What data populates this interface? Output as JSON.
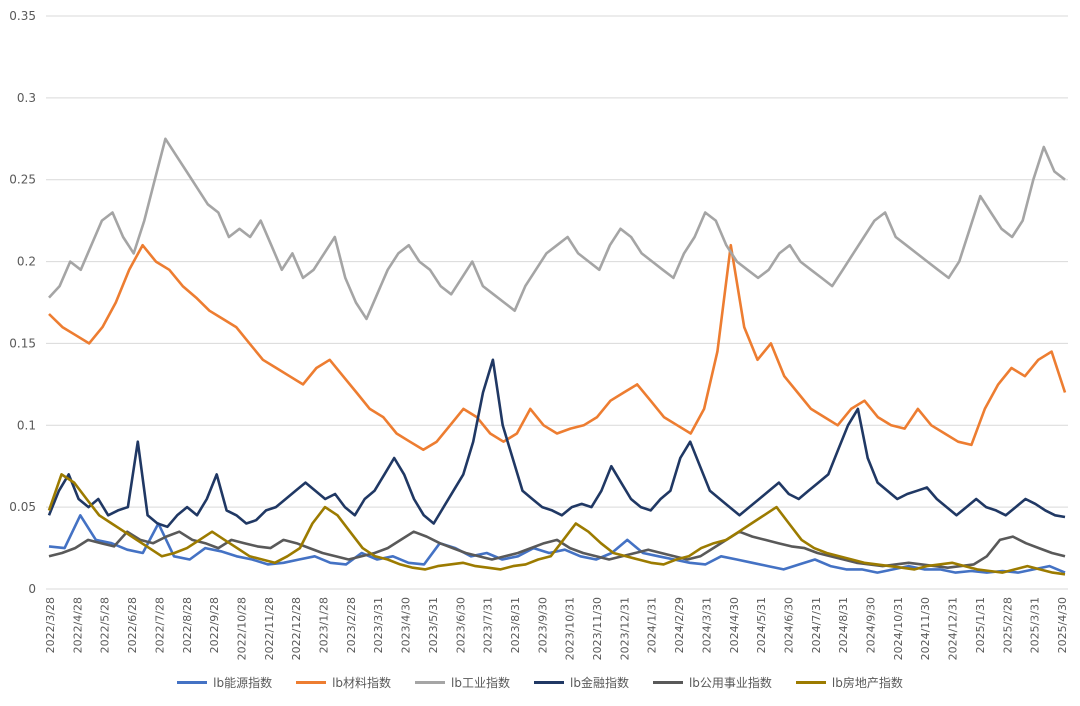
{
  "chart_data": {
    "type": "line",
    "y_ticks": [
      "0",
      "0.05",
      "0.1",
      "0.15",
      "0.2",
      "0.25",
      "0.3",
      "0.35"
    ],
    "ylim": [
      0,
      0.35
    ],
    "grid": true,
    "legend_position": "bottom",
    "x_ticks": [
      "2022/3/28",
      "2022/4/28",
      "2022/5/28",
      "2022/6/28",
      "2022/7/28",
      "2022/8/28",
      "2022/9/28",
      "2022/10/28",
      "2022/11/28",
      "2022/12/28",
      "2023/1/28",
      "2023/2/28",
      "2023/3/31",
      "2023/4/30",
      "2023/5/31",
      "2023/6/30",
      "2023/7/31",
      "2023/8/31",
      "2023/9/30",
      "2023/10/31",
      "2023/11/30",
      "2023/12/31",
      "2024/1/31",
      "2024/2/29",
      "2024/3/31",
      "2024/4/30",
      "2024/5/31",
      "2024/6/30",
      "2024/7/31",
      "2024/8/31",
      "2024/9/30",
      "2024/10/31",
      "2024/11/30",
      "2024/12/31",
      "2025/1/31",
      "2025/2/28",
      "2025/3/31",
      "2025/4/30"
    ],
    "series": [
      {
        "name": "lb能源指数",
        "color": "#4472C4",
        "values": [
          0.026,
          0.025,
          0.045,
          0.03,
          0.028,
          0.024,
          0.022,
          0.04,
          0.02,
          0.018,
          0.025,
          0.023,
          0.02,
          0.018,
          0.015,
          0.016,
          0.018,
          0.02,
          0.016,
          0.015,
          0.022,
          0.018,
          0.02,
          0.016,
          0.015,
          0.028,
          0.025,
          0.02,
          0.022,
          0.018,
          0.02,
          0.025,
          0.022,
          0.024,
          0.02,
          0.018,
          0.022,
          0.03,
          0.022,
          0.02,
          0.018,
          0.016,
          0.015,
          0.02,
          0.018,
          0.016,
          0.014,
          0.012,
          0.015,
          0.018,
          0.014,
          0.012,
          0.012,
          0.01,
          0.012,
          0.014,
          0.012,
          0.012,
          0.01,
          0.011,
          0.01,
          0.011,
          0.01,
          0.012,
          0.014,
          0.01
        ]
      },
      {
        "name": "lb材料指数",
        "color": "#ED7D31",
        "values": [
          0.168,
          0.16,
          0.155,
          0.15,
          0.16,
          0.175,
          0.195,
          0.21,
          0.2,
          0.195,
          0.185,
          0.178,
          0.17,
          0.165,
          0.16,
          0.15,
          0.14,
          0.135,
          0.13,
          0.125,
          0.135,
          0.14,
          0.13,
          0.12,
          0.11,
          0.105,
          0.095,
          0.09,
          0.085,
          0.09,
          0.1,
          0.11,
          0.105,
          0.095,
          0.09,
          0.095,
          0.11,
          0.1,
          0.095,
          0.098,
          0.1,
          0.105,
          0.115,
          0.12,
          0.125,
          0.115,
          0.105,
          0.1,
          0.095,
          0.11,
          0.145,
          0.21,
          0.16,
          0.14,
          0.15,
          0.13,
          0.12,
          0.11,
          0.105,
          0.1,
          0.11,
          0.115,
          0.105,
          0.1,
          0.098,
          0.11,
          0.1,
          0.095,
          0.09,
          0.088,
          0.11,
          0.125,
          0.135,
          0.13,
          0.14,
          0.145,
          0.12
        ]
      },
      {
        "name": "lb工业指数",
        "color": "#A5A5A5",
        "values": [
          0.178,
          0.185,
          0.2,
          0.195,
          0.21,
          0.225,
          0.23,
          0.215,
          0.205,
          0.225,
          0.25,
          0.275,
          0.265,
          0.255,
          0.245,
          0.235,
          0.23,
          0.215,
          0.22,
          0.215,
          0.225,
          0.21,
          0.195,
          0.205,
          0.19,
          0.195,
          0.205,
          0.215,
          0.19,
          0.175,
          0.165,
          0.18,
          0.195,
          0.205,
          0.21,
          0.2,
          0.195,
          0.185,
          0.18,
          0.19,
          0.2,
          0.185,
          0.18,
          0.175,
          0.17,
          0.185,
          0.195,
          0.205,
          0.21,
          0.215,
          0.205,
          0.2,
          0.195,
          0.21,
          0.22,
          0.215,
          0.205,
          0.2,
          0.195,
          0.19,
          0.205,
          0.215,
          0.23,
          0.225,
          0.21,
          0.2,
          0.195,
          0.19,
          0.195,
          0.205,
          0.21,
          0.2,
          0.195,
          0.19,
          0.185,
          0.195,
          0.205,
          0.215,
          0.225,
          0.23,
          0.215,
          0.21,
          0.205,
          0.2,
          0.195,
          0.19,
          0.2,
          0.22,
          0.24,
          0.23,
          0.22,
          0.215,
          0.225,
          0.25,
          0.27,
          0.255,
          0.25
        ]
      },
      {
        "name": "lb金融指数",
        "color": "#203864",
        "values": [
          0.045,
          0.06,
          0.07,
          0.055,
          0.05,
          0.055,
          0.045,
          0.048,
          0.05,
          0.09,
          0.045,
          0.04,
          0.038,
          0.045,
          0.05,
          0.045,
          0.055,
          0.07,
          0.048,
          0.045,
          0.04,
          0.042,
          0.048,
          0.05,
          0.055,
          0.06,
          0.065,
          0.06,
          0.055,
          0.058,
          0.05,
          0.045,
          0.055,
          0.06,
          0.07,
          0.08,
          0.07,
          0.055,
          0.045,
          0.04,
          0.05,
          0.06,
          0.07,
          0.09,
          0.12,
          0.14,
          0.1,
          0.08,
          0.06,
          0.055,
          0.05,
          0.048,
          0.045,
          0.05,
          0.052,
          0.05,
          0.06,
          0.075,
          0.065,
          0.055,
          0.05,
          0.048,
          0.055,
          0.06,
          0.08,
          0.09,
          0.075,
          0.06,
          0.055,
          0.05,
          0.045,
          0.05,
          0.055,
          0.06,
          0.065,
          0.058,
          0.055,
          0.06,
          0.065,
          0.07,
          0.085,
          0.1,
          0.11,
          0.08,
          0.065,
          0.06,
          0.055,
          0.058,
          0.06,
          0.062,
          0.055,
          0.05,
          0.045,
          0.05,
          0.055,
          0.05,
          0.048,
          0.045,
          0.05,
          0.055,
          0.052,
          0.048,
          0.045,
          0.044
        ]
      },
      {
        "name": "lb公用事业指数",
        "color": "#595959",
        "values": [
          0.02,
          0.022,
          0.025,
          0.03,
          0.028,
          0.026,
          0.035,
          0.03,
          0.028,
          0.032,
          0.035,
          0.03,
          0.028,
          0.025,
          0.03,
          0.028,
          0.026,
          0.025,
          0.03,
          0.028,
          0.025,
          0.022,
          0.02,
          0.018,
          0.02,
          0.022,
          0.025,
          0.03,
          0.035,
          0.032,
          0.028,
          0.025,
          0.022,
          0.02,
          0.018,
          0.02,
          0.022,
          0.025,
          0.028,
          0.03,
          0.025,
          0.022,
          0.02,
          0.018,
          0.02,
          0.022,
          0.024,
          0.022,
          0.02,
          0.018,
          0.02,
          0.025,
          0.03,
          0.035,
          0.032,
          0.03,
          0.028,
          0.026,
          0.025,
          0.022,
          0.02,
          0.018,
          0.016,
          0.015,
          0.014,
          0.015,
          0.016,
          0.015,
          0.014,
          0.013,
          0.014,
          0.015,
          0.02,
          0.03,
          0.032,
          0.028,
          0.025,
          0.022,
          0.02
        ]
      },
      {
        "name": "lb房地产指数",
        "color": "#9C7B00",
        "values": [
          0.048,
          0.07,
          0.065,
          0.055,
          0.045,
          0.04,
          0.035,
          0.03,
          0.025,
          0.02,
          0.022,
          0.025,
          0.03,
          0.035,
          0.03,
          0.025,
          0.02,
          0.018,
          0.016,
          0.02,
          0.025,
          0.04,
          0.05,
          0.045,
          0.035,
          0.025,
          0.02,
          0.018,
          0.015,
          0.013,
          0.012,
          0.014,
          0.015,
          0.016,
          0.014,
          0.013,
          0.012,
          0.014,
          0.015,
          0.018,
          0.02,
          0.03,
          0.04,
          0.035,
          0.028,
          0.022,
          0.02,
          0.018,
          0.016,
          0.015,
          0.018,
          0.02,
          0.025,
          0.028,
          0.03,
          0.035,
          0.04,
          0.045,
          0.05,
          0.04,
          0.03,
          0.025,
          0.022,
          0.02,
          0.018,
          0.016,
          0.015,
          0.014,
          0.013,
          0.012,
          0.014,
          0.015,
          0.016,
          0.014,
          0.012,
          0.011,
          0.01,
          0.012,
          0.014,
          0.012,
          0.01,
          0.009
        ]
      }
    ]
  }
}
